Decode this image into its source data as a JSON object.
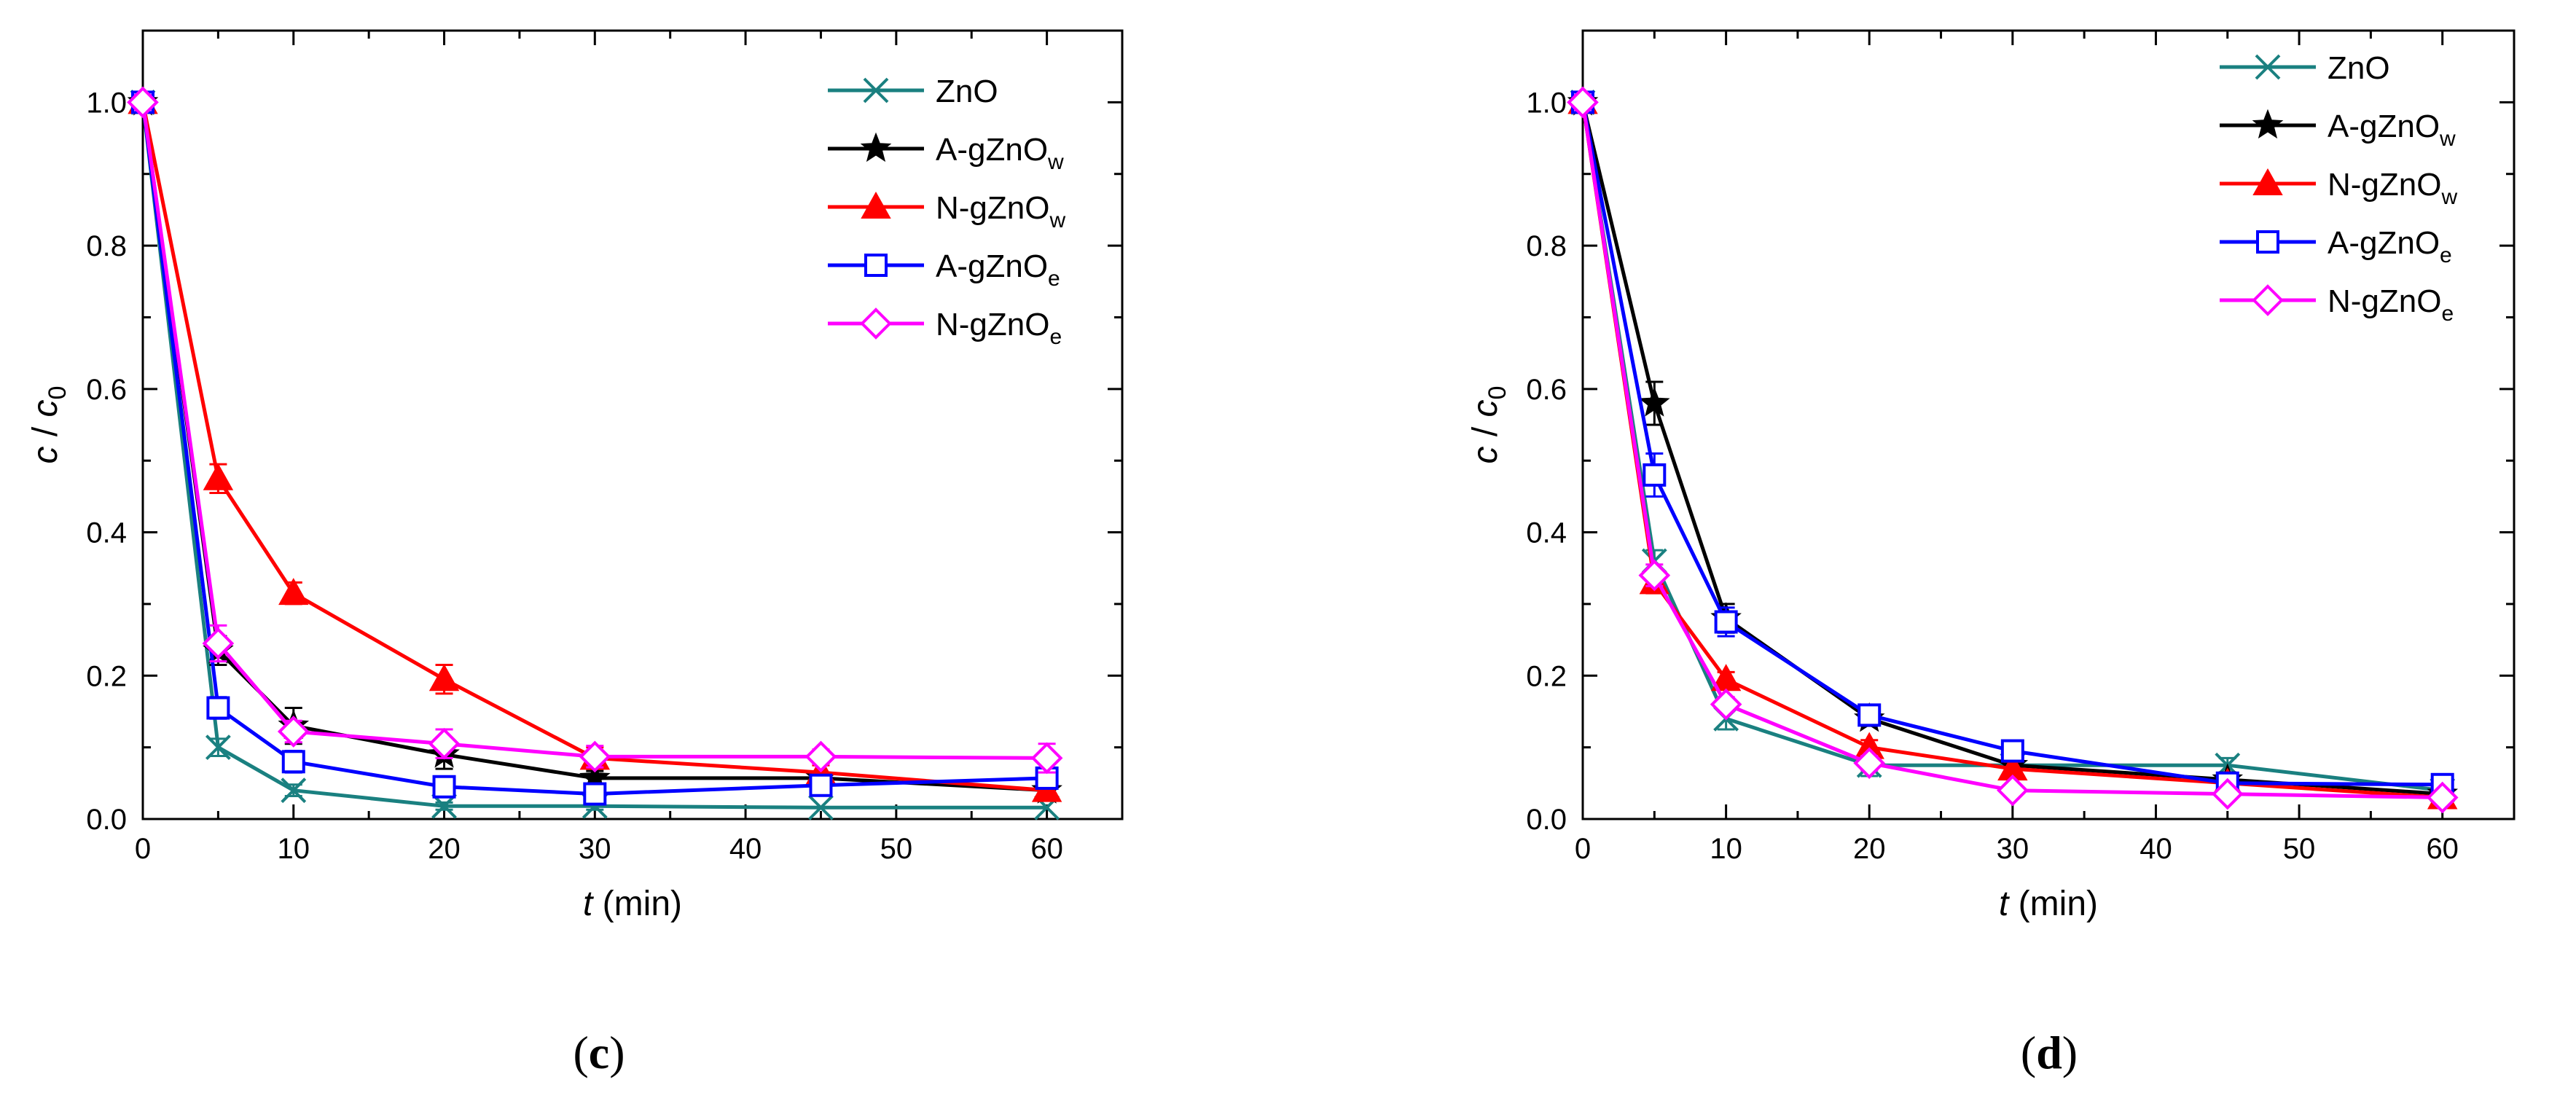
{
  "chart_data": [
    {
      "type": "line",
      "panel_label": "(c)",
      "panel_letter": "c",
      "xlabel": {
        "var": "t",
        "unit": " (min)"
      },
      "ylabel": {
        "var": "c",
        "sep": " / ",
        "sub_var": "c",
        "sub": "0"
      },
      "xlim": [
        0,
        65
      ],
      "ylim": [
        0,
        1.1
      ],
      "x_ticks": [
        0,
        10,
        20,
        30,
        40,
        50,
        60
      ],
      "y_ticks": [
        "0.0",
        "0.2",
        "0.4",
        "0.6",
        "0.8",
        "1.0"
      ],
      "x": [
        0,
        5,
        10,
        20,
        30,
        45,
        60
      ],
      "grid": false,
      "legend_position": "top-right",
      "series": [
        {
          "name": "ZnO",
          "label_main": "ZnO",
          "label_sub": "",
          "color": "#1a8080",
          "marker": "x",
          "values": [
            1.0,
            0.1,
            0.04,
            0.018,
            0.018,
            0.016,
            0.016
          ],
          "errors": [
            0.01,
            0.012,
            0.008,
            0.005,
            0.005,
            0.004,
            0.004
          ]
        },
        {
          "name": "A-gZnOw",
          "label_main": "A-gZnO",
          "label_sub": "w",
          "color": "#000000",
          "marker": "star",
          "values": [
            1.0,
            0.235,
            0.13,
            0.09,
            0.057,
            0.057,
            0.04
          ],
          "errors": [
            0.01,
            0.02,
            0.025,
            0.02,
            0.01,
            0.008,
            0.008
          ]
        },
        {
          "name": "N-gZnOw",
          "label_main": "N-gZnO",
          "label_sub": "w",
          "color": "#ff0000",
          "marker": "triangle",
          "values": [
            1.0,
            0.475,
            0.315,
            0.195,
            0.085,
            0.065,
            0.04
          ],
          "errors": [
            0.01,
            0.02,
            0.015,
            0.02,
            0.015,
            0.01,
            0.008
          ]
        },
        {
          "name": "A-gZnOe",
          "label_main": "A-gZnO",
          "label_sub": "e",
          "color": "#0000ff",
          "marker": "square",
          "values": [
            1.0,
            0.155,
            0.08,
            0.045,
            0.035,
            0.047,
            0.057
          ],
          "errors": [
            0.01,
            0.015,
            0.015,
            0.01,
            0.008,
            0.01,
            0.01
          ]
        },
        {
          "name": "N-gZnOe",
          "label_main": "N-gZnO",
          "label_sub": "e",
          "color": "#ff00ff",
          "marker": "diamond",
          "values": [
            1.0,
            0.245,
            0.122,
            0.105,
            0.087,
            0.087,
            0.085
          ],
          "errors": [
            0.01,
            0.025,
            0.015,
            0.02,
            0.015,
            0.01,
            0.02
          ]
        }
      ]
    },
    {
      "type": "line",
      "panel_label": "(d)",
      "panel_letter": "d",
      "xlabel": {
        "var": "t",
        "unit": " (min)"
      },
      "ylabel": {
        "var": "c",
        "sep": " / ",
        "sub_var": "c",
        "sub": "0"
      },
      "xlim": [
        0,
        65
      ],
      "ylim": [
        0,
        1.1
      ],
      "x_ticks": [
        0,
        10,
        20,
        30,
        40,
        50,
        60
      ],
      "y_ticks": [
        "0.0",
        "0.2",
        "0.4",
        "0.6",
        "0.8",
        "1.0"
      ],
      "x": [
        0,
        5,
        10,
        20,
        30,
        45,
        60
      ],
      "grid": false,
      "legend_position": "top-right",
      "series": [
        {
          "name": "ZnO",
          "label_main": "ZnO",
          "label_sub": "",
          "color": "#1a8080",
          "marker": "x",
          "values": [
            1.0,
            0.36,
            0.14,
            0.075,
            0.075,
            0.075,
            0.04
          ],
          "errors": [
            0.01,
            0.015,
            0.015,
            0.015,
            0.01,
            0.01,
            0.008
          ]
        },
        {
          "name": "A-gZnOw",
          "label_main": "A-gZnO",
          "label_sub": "w",
          "color": "#000000",
          "marker": "star",
          "values": [
            1.0,
            0.58,
            0.28,
            0.14,
            0.075,
            0.055,
            0.035
          ],
          "errors": [
            0.01,
            0.03,
            0.02,
            0.01,
            0.01,
            0.01,
            0.008
          ]
        },
        {
          "name": "N-gZnOw",
          "label_main": "N-gZnO",
          "label_sub": "w",
          "color": "#ff0000",
          "marker": "triangle",
          "values": [
            1.0,
            0.33,
            0.195,
            0.1,
            0.07,
            0.05,
            0.03
          ],
          "errors": [
            0.01,
            0.015,
            0.01,
            0.01,
            0.01,
            0.008,
            0.006
          ]
        },
        {
          "name": "A-gZnOe",
          "label_main": "A-gZnO",
          "label_sub": "e",
          "color": "#0000ff",
          "marker": "square",
          "values": [
            1.0,
            0.48,
            0.275,
            0.145,
            0.095,
            0.05,
            0.048
          ],
          "errors": [
            0.01,
            0.03,
            0.02,
            0.01,
            0.01,
            0.008,
            0.008
          ]
        },
        {
          "name": "N-gZnOe",
          "label_main": "N-gZnO",
          "label_sub": "e",
          "color": "#ff00ff",
          "marker": "diamond",
          "values": [
            1.0,
            0.34,
            0.16,
            0.078,
            0.04,
            0.035,
            0.03
          ],
          "errors": [
            0.01,
            0.015,
            0.01,
            0.01,
            0.008,
            0.008,
            0.006
          ]
        }
      ]
    }
  ]
}
